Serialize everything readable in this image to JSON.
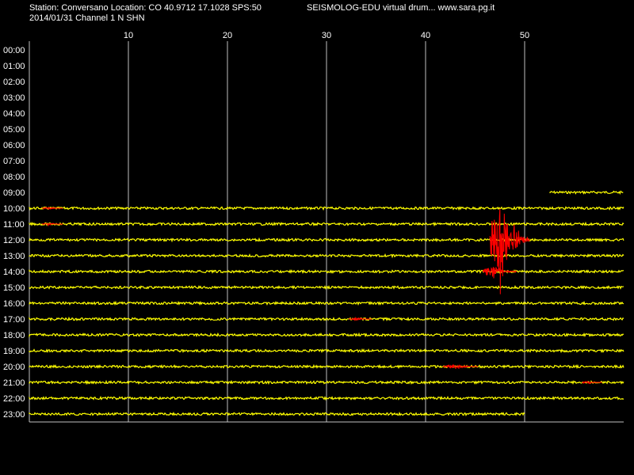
{
  "header": {
    "station_line": "Station: Conversano Location: CO 40.9712 17.1028 SPS:50",
    "title": "SEISMOLOG-EDU virtual drum... www.sara.pg.it",
    "date_line": "2014/01/31  Channel 1 N SHN"
  },
  "colors": {
    "background": "#000000",
    "trace": "#ffff00",
    "event": "#ff0000",
    "grid": "#c0c0c0",
    "text": "#ffffff"
  },
  "chart_data": {
    "type": "line",
    "title": "SEISMOLOG-EDU virtual drum... www.sara.pg.it",
    "xlabel": "",
    "ylabel": "",
    "xlim": [
      0,
      60
    ],
    "x_unit": "minutes",
    "x_ticks": [
      10,
      20,
      30,
      40,
      50
    ],
    "rows": [
      "00:00",
      "01:00",
      "02:00",
      "03:00",
      "04:00",
      "05:00",
      "06:00",
      "07:00",
      "08:00",
      "09:00",
      "10:00",
      "11:00",
      "12:00",
      "13:00",
      "14:00",
      "15:00",
      "16:00",
      "17:00",
      "18:00",
      "19:00",
      "20:00",
      "21:00",
      "22:00",
      "23:00"
    ],
    "grid": true,
    "traces": [
      {
        "hour": "09:00",
        "start_min": 52.5,
        "end_min": 60
      },
      {
        "hour": "10:00",
        "start_min": 0,
        "end_min": 60
      },
      {
        "hour": "11:00",
        "start_min": 0,
        "end_min": 60
      },
      {
        "hour": "12:00",
        "start_min": 0,
        "end_min": 60
      },
      {
        "hour": "13:00",
        "start_min": 0,
        "end_min": 60
      },
      {
        "hour": "14:00",
        "start_min": 0,
        "end_min": 60
      },
      {
        "hour": "15:00",
        "start_min": 0,
        "end_min": 60
      },
      {
        "hour": "16:00",
        "start_min": 0,
        "end_min": 60
      },
      {
        "hour": "17:00",
        "start_min": 0,
        "end_min": 60
      },
      {
        "hour": "18:00",
        "start_min": 0,
        "end_min": 60
      },
      {
        "hour": "19:00",
        "start_min": 0,
        "end_min": 60
      },
      {
        "hour": "20:00",
        "start_min": 0,
        "end_min": 60
      },
      {
        "hour": "21:00",
        "start_min": 0,
        "end_min": 60
      },
      {
        "hour": "22:00",
        "start_min": 0,
        "end_min": 60
      },
      {
        "hour": "23:00",
        "start_min": 0,
        "end_min": 50
      }
    ],
    "events": [
      {
        "hour": "10:00",
        "start_min": 1.3,
        "end_min": 3.4,
        "amplitude_rows": 0.12
      },
      {
        "hour": "11:00",
        "start_min": 1.3,
        "end_min": 3.4,
        "amplitude_rows": 0.12
      },
      {
        "hour": "12:00",
        "start_min": 46.5,
        "end_min": 50.5,
        "amplitude_rows": 4.5
      },
      {
        "hour": "14:00",
        "start_min": 45.8,
        "end_min": 49.2,
        "amplitude_rows": 0.7
      },
      {
        "hour": "17:00",
        "start_min": 32.3,
        "end_min": 34.6,
        "amplitude_rows": 0.15
      },
      {
        "hour": "20:00",
        "start_min": 41.8,
        "end_min": 45.3,
        "amplitude_rows": 0.3
      },
      {
        "hour": "21:00",
        "start_min": 55.8,
        "end_min": 57.8,
        "amplitude_rows": 0.15
      }
    ]
  }
}
